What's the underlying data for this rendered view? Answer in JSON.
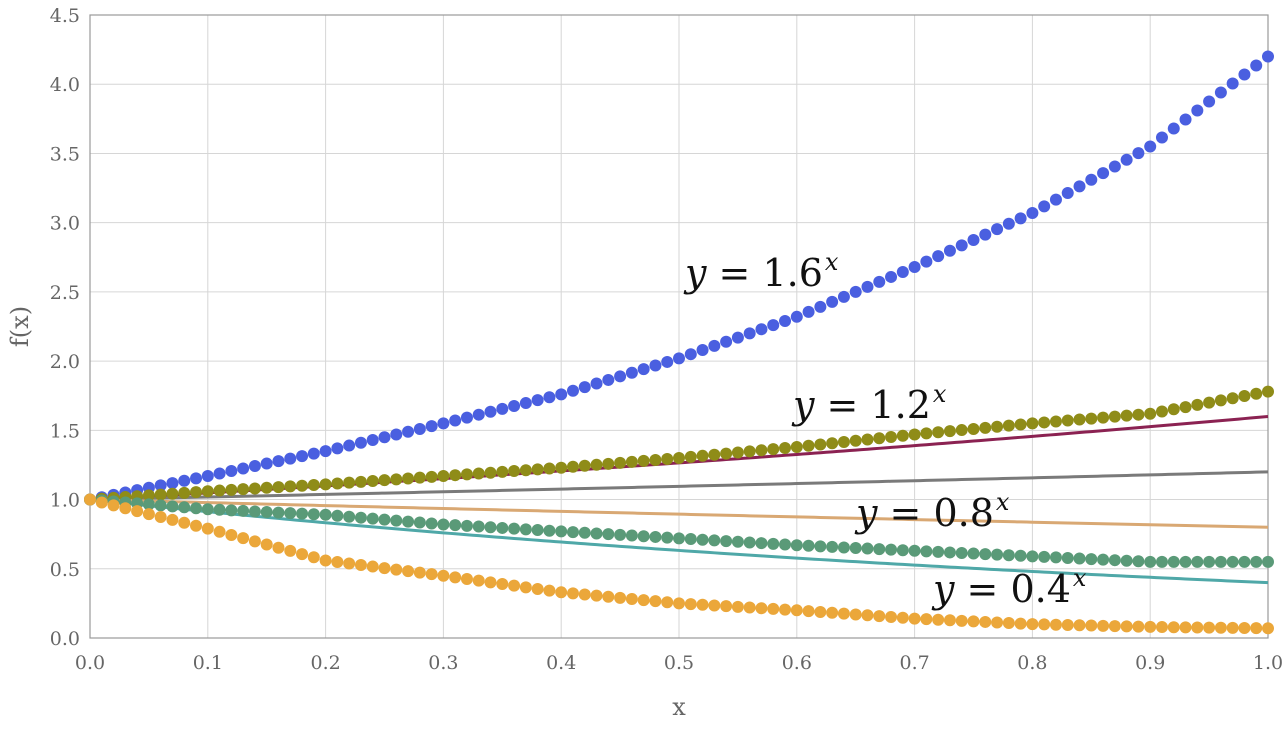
{
  "chart_data": {
    "type": "scatter",
    "title": "",
    "xlabel": "x",
    "ylabel": "f(x)",
    "xlim": [
      0,
      1
    ],
    "ylim": [
      0,
      4.5
    ],
    "xticks": [
      "0.0",
      "0.1",
      "0.2",
      "0.3",
      "0.4",
      "0.5",
      "0.6",
      "0.7",
      "0.8",
      "0.9",
      "1.0"
    ],
    "yticks": [
      "0.0",
      "0.5",
      "1.0",
      "1.5",
      "2.0",
      "2.5",
      "3.0",
      "3.5",
      "4.0",
      "4.5"
    ],
    "grid": true,
    "legend": "none",
    "series": [
      {
        "name": "y = 1.6^x",
        "label_parts": {
          "var": "y",
          "eq": " = ",
          "base": "1.6",
          "exp": "x"
        },
        "base": 1.6,
        "marker_color": "#4a5fe0",
        "line_color": "#8b2252",
        "x": [
          0.0,
          0.1,
          0.2,
          0.3,
          0.4,
          0.5,
          0.6,
          0.7,
          0.8,
          0.9,
          1.0
        ],
        "y": [
          1.0,
          1.17,
          1.35,
          1.55,
          1.76,
          2.02,
          2.32,
          2.68,
          3.07,
          3.55,
          4.2
        ]
      },
      {
        "name": "y = 1.2^x",
        "label_parts": {
          "var": "y",
          "eq": " = ",
          "base": "1.2",
          "exp": "x"
        },
        "base": 1.2,
        "marker_color": "#8f8c18",
        "line_color": "#7a7a7a",
        "x": [
          0.0,
          0.1,
          0.2,
          0.3,
          0.4,
          0.5,
          0.6,
          0.7,
          0.8,
          0.9,
          1.0
        ],
        "y": [
          1.0,
          1.06,
          1.11,
          1.17,
          1.23,
          1.3,
          1.38,
          1.47,
          1.55,
          1.62,
          1.78
        ]
      },
      {
        "name": "y = 0.8^x",
        "label_parts": {
          "var": "y",
          "eq": " = ",
          "base": "0.8",
          "exp": "x"
        },
        "base": 0.8,
        "marker_color": "#5a9a78",
        "line_color": "#d9a873",
        "x": [
          0.0,
          0.1,
          0.2,
          0.3,
          0.4,
          0.5,
          0.6,
          0.7,
          0.8,
          0.9,
          1.0
        ],
        "y": [
          1.0,
          0.93,
          0.89,
          0.82,
          0.77,
          0.72,
          0.67,
          0.63,
          0.59,
          0.55,
          0.55
        ]
      },
      {
        "name": "y = 0.4^x",
        "label_parts": {
          "var": "y",
          "eq": " = ",
          "base": "0.4",
          "exp": "x"
        },
        "base": 0.4,
        "marker_color": "#eba73a",
        "line_color": "#4fa8a8",
        "x": [
          0.0,
          0.1,
          0.2,
          0.3,
          0.4,
          0.5,
          0.6,
          0.7,
          0.8,
          0.9,
          1.0
        ],
        "y": [
          1.0,
          0.79,
          0.56,
          0.45,
          0.33,
          0.25,
          0.2,
          0.14,
          0.1,
          0.08,
          0.07
        ]
      }
    ]
  }
}
